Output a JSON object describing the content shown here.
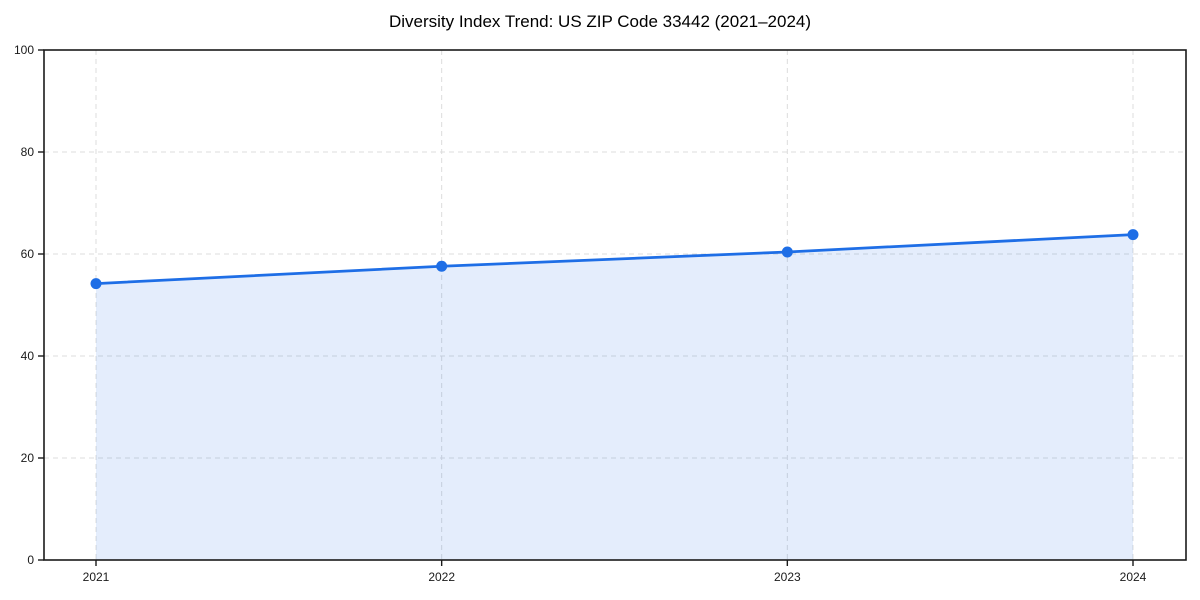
{
  "title": "Diversity Index Trend: US ZIP Code 33442 (2021–2024)",
  "colors": {
    "line": "#1e6ee6",
    "marker": "#1e6ee6",
    "fill": "#1e6ee6",
    "fill_opacity": 0.12,
    "grid": "#dcdcdc",
    "spine": "#1a1a1a",
    "tick_text": "#1a1a1a",
    "background": "#ffffff"
  },
  "chart_data": {
    "type": "area",
    "title": "Diversity Index Trend: US ZIP Code 33442 (2021–2024)",
    "x": [
      2021,
      2022,
      2023,
      2024
    ],
    "values": [
      54.2,
      57.6,
      60.4,
      63.8
    ],
    "xlabel": "",
    "ylabel": "",
    "ylim": [
      0,
      100
    ],
    "yticks": [
      0,
      20,
      40,
      60,
      80,
      100
    ],
    "xtick_labels": [
      "2021",
      "2022",
      "2023",
      "2024"
    ],
    "grid": true,
    "grid_style": "dashed",
    "legend_position": "none",
    "markers": true
  }
}
